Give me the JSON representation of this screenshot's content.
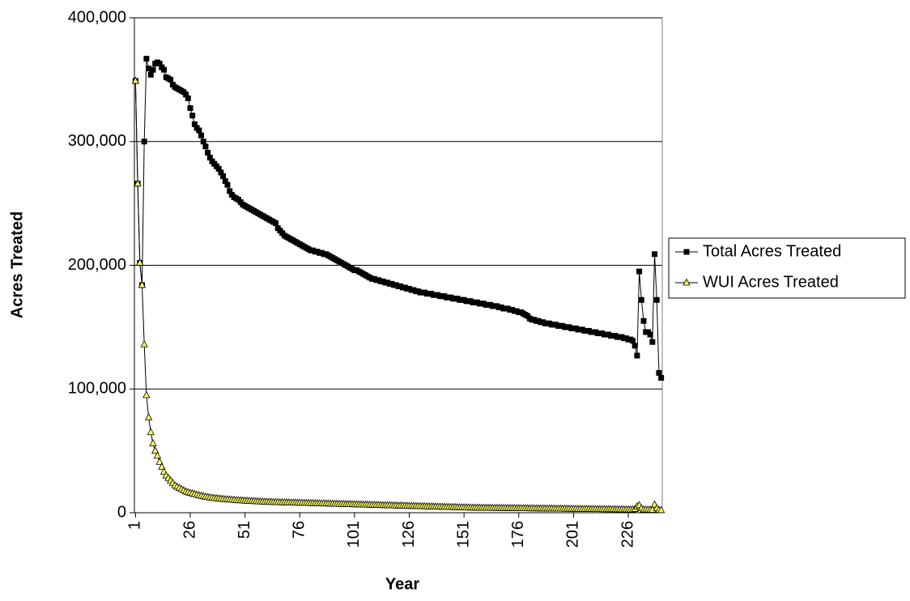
{
  "chart_data": {
    "type": "line",
    "y_label": "Acres Treated",
    "x_label": "Year",
    "categories": [
      1,
      null,
      null,
      null,
      null,
      null,
      null,
      null,
      null,
      null,
      null,
      null,
      null,
      null,
      null,
      null,
      null,
      null,
      null,
      null,
      null,
      null,
      null,
      null,
      null,
      26,
      null,
      null,
      null,
      null,
      null,
      null,
      null,
      null,
      null,
      null,
      null,
      null,
      null,
      null,
      null,
      null,
      null,
      null,
      null,
      null,
      null,
      null,
      null,
      null,
      51,
      null,
      null,
      null,
      null,
      null,
      null,
      null,
      null,
      null,
      null,
      null,
      null,
      null,
      null,
      null,
      null,
      null,
      null,
      null,
      null,
      null,
      null,
      null,
      null,
      76,
      null,
      null,
      null,
      null,
      null,
      null,
      null,
      null,
      null,
      null,
      null,
      null,
      null,
      null,
      null,
      null,
      null,
      null,
      null,
      null,
      null,
      null,
      null,
      null,
      101,
      null,
      null,
      null,
      null,
      null,
      null,
      null,
      null,
      null,
      null,
      null,
      null,
      null,
      null,
      null,
      null,
      null,
      null,
      null,
      null,
      null,
      null,
      null,
      null,
      126,
      null,
      null,
      null,
      null,
      null,
      null,
      null,
      null,
      null,
      null,
      null,
      null,
      null,
      null,
      null,
      null,
      null,
      null,
      null,
      null,
      null,
      null,
      null,
      null,
      151,
      null,
      null,
      null,
      null,
      null,
      null,
      null,
      null,
      null,
      null,
      null,
      null,
      null,
      null,
      null,
      null,
      null,
      null,
      null,
      null,
      null,
      null,
      null,
      null,
      176,
      null,
      null,
      null,
      null,
      null,
      null,
      null,
      null,
      null,
      null,
      null,
      null,
      null,
      null,
      null,
      null,
      null,
      null,
      null,
      null,
      null,
      null,
      null,
      null,
      201,
      null,
      null,
      null,
      null,
      null,
      null,
      null,
      null,
      null,
      null,
      null,
      null,
      null,
      null,
      null,
      null,
      null,
      null,
      null,
      null,
      null,
      null,
      null,
      null,
      226,
      null,
      null,
      null,
      null,
      null,
      null,
      null,
      null,
      null,
      null,
      null,
      null,
      null,
      null,
      null
    ],
    "series": [
      {
        "name": "Total Acres Treated",
        "color": "#000000",
        "marker": "square",
        "values": [
          349000,
          266000,
          202000,
          184000,
          300000,
          367000,
          359000,
          354000,
          358000,
          363000,
          364000,
          363000,
          360000,
          358000,
          352000,
          351000,
          350000,
          346000,
          344000,
          343000,
          342000,
          341000,
          340000,
          338000,
          335000,
          327000,
          321000,
          314000,
          311000,
          309000,
          305000,
          300000,
          296000,
          291000,
          287000,
          284000,
          282000,
          280000,
          278000,
          275000,
          272000,
          268000,
          265000,
          260000,
          257000,
          255000,
          254000,
          253000,
          251000,
          249000,
          248000,
          247000,
          246000,
          245000,
          244000,
          243000,
          242000,
          241000,
          240000,
          239000,
          238000,
          237000,
          236000,
          235000,
          234000,
          230000,
          228000,
          226000,
          224000,
          223000,
          222000,
          221000,
          220000,
          219000,
          218000,
          217000,
          216000,
          215000,
          214000,
          213000,
          212000,
          212000,
          211000,
          211000,
          210000,
          210000,
          209000,
          209000,
          208000,
          207000,
          206000,
          205000,
          204000,
          203000,
          202000,
          201000,
          200000,
          199000,
          198000,
          197000,
          196000,
          196000,
          195000,
          194000,
          193000,
          192000,
          191000,
          190000,
          189000,
          189000,
          188000,
          188000,
          187000,
          187000,
          186000,
          186000,
          185000,
          185000,
          184000,
          184000,
          183000,
          183000,
          182000,
          182000,
          181000,
          181000,
          180000,
          180000,
          179000,
          179000,
          178000,
          178000,
          178000,
          177000,
          177000,
          177000,
          176000,
          176000,
          176000,
          175000,
          175000,
          175000,
          174000,
          174000,
          174000,
          173000,
          173000,
          173000,
          172000,
          172000,
          172000,
          171000,
          171000,
          171000,
          170000,
          170000,
          170000,
          169000,
          169000,
          169000,
          168000,
          168000,
          168000,
          167000,
          167000,
          167000,
          166000,
          166000,
          165000,
          165000,
          165000,
          164000,
          164000,
          163000,
          163000,
          162000,
          162000,
          161000,
          160000,
          159000,
          157000,
          156000,
          156000,
          155000,
          155000,
          154000,
          154000,
          153000,
          153000,
          153000,
          152000,
          152000,
          152000,
          151000,
          151000,
          151000,
          150000,
          150000,
          150000,
          149000,
          149000,
          149000,
          148000,
          148000,
          148000,
          147000,
          147000,
          147000,
          146000,
          146000,
          146000,
          145000,
          145000,
          145000,
          144000,
          144000,
          144000,
          143000,
          143000,
          143000,
          142000,
          142000,
          142000,
          141000,
          141000,
          140000,
          140000,
          139000,
          135000,
          127000,
          195000,
          172000,
          155000,
          146000,
          146000,
          144000,
          138000,
          209000,
          172000,
          113000,
          109000
        ]
      },
      {
        "name": "WUI Acres Treated",
        "color": "#ffff66",
        "marker": "triangle",
        "values": [
          349000,
          266000,
          202000,
          184000,
          136000,
          95000,
          77000,
          65000,
          56000,
          50000,
          46000,
          41000,
          37000,
          33000,
          30000,
          28000,
          26000,
          24000,
          22000,
          21000,
          20000,
          19000,
          18000,
          17000,
          16500,
          16000,
          15500,
          15000,
          14500,
          14000,
          13600,
          13200,
          12900,
          12600,
          12300,
          12000,
          11800,
          11600,
          11400,
          11200,
          11000,
          10800,
          10700,
          10500,
          10400,
          10300,
          10100,
          10000,
          9900,
          9800,
          9700,
          9600,
          9500,
          9400,
          9300,
          9200,
          9100,
          9000,
          8900,
          8800,
          8700,
          8650,
          8600,
          8550,
          8500,
          8450,
          8400,
          8350,
          8300,
          8250,
          8200,
          8150,
          8100,
          8050,
          8000,
          7950,
          7900,
          7850,
          7800,
          7750,
          7700,
          7650,
          7600,
          7550,
          7500,
          7450,
          7400,
          7350,
          7300,
          7250,
          7200,
          7150,
          7100,
          7050,
          7000,
          6950,
          6900,
          6850,
          6800,
          6750,
          6700,
          6650,
          6600,
          6550,
          6500,
          6450,
          6400,
          6350,
          6300,
          6250,
          6200,
          6150,
          6100,
          6050,
          6000,
          5950,
          5900,
          5850,
          5800,
          5750,
          5700,
          5650,
          5600,
          5550,
          5500,
          5450,
          5400,
          5350,
          5300,
          5250,
          5200,
          5150,
          5100,
          5050,
          5000,
          4950,
          4900,
          4850,
          4800,
          4750,
          4700,
          4650,
          4600,
          4550,
          4500,
          4450,
          4400,
          4350,
          4300,
          4250,
          4200,
          4150,
          4100,
          4050,
          4000,
          3980,
          3960,
          3940,
          3920,
          3900,
          3880,
          3860,
          3840,
          3820,
          3800,
          3780,
          3760,
          3740,
          3720,
          3700,
          3680,
          3660,
          3640,
          3620,
          3600,
          3580,
          3560,
          3540,
          3520,
          3500,
          3480,
          3460,
          3440,
          3420,
          3400,
          3380,
          3360,
          3340,
          3320,
          3300,
          3280,
          3260,
          3240,
          3220,
          3200,
          3180,
          3160,
          3140,
          3120,
          3100,
          3080,
          3060,
          3040,
          3020,
          3000,
          2980,
          2960,
          2940,
          2920,
          2900,
          2880,
          2860,
          2840,
          2820,
          2800,
          2780,
          2760,
          2740,
          2720,
          2700,
          2680,
          2660,
          2640,
          2620,
          2600,
          2580,
          2560,
          2540,
          3000,
          5000,
          6000,
          3500,
          2500,
          2500,
          2400,
          2400,
          2300,
          6500,
          3500,
          2200,
          2000
        ]
      }
    ],
    "ylim": [
      0,
      400000
    ],
    "yticks": [
      0,
      {
        "value": 100000,
        "label": "100,000"
      },
      {
        "value": 200000,
        "label": "200,000"
      },
      {
        "value": 300000,
        "label": "300,000"
      },
      {
        "value": 400000,
        "label": "400,000"
      }
    ],
    "grid": true,
    "legend": "right"
  }
}
